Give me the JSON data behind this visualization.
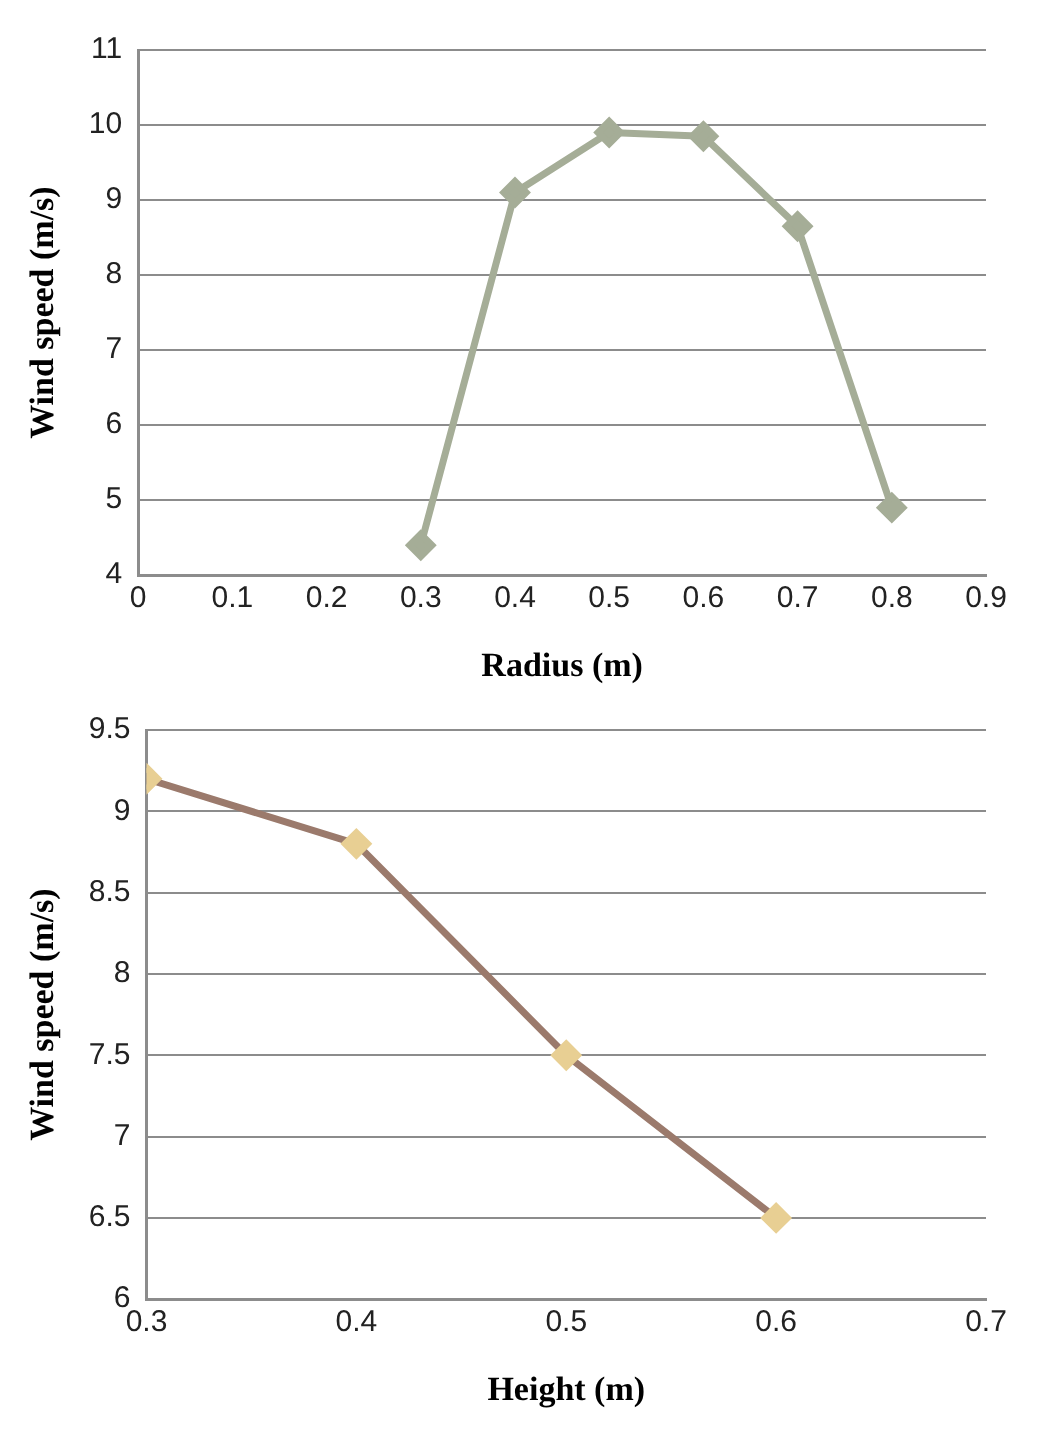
{
  "chart_data": [
    {
      "type": "line",
      "xlabel": "Radius (m)",
      "ylabel": "Wind speed (m/s)",
      "x": [
        0.3,
        0.4,
        0.5,
        0.6,
        0.7,
        0.8
      ],
      "series": [
        {
          "color": "#a5ad97",
          "values": [
            4.4,
            9.1,
            9.9,
            9.85,
            8.65,
            4.9
          ]
        }
      ],
      "xlim": [
        0,
        0.9
      ],
      "xticks": [
        0,
        0.1,
        0.2,
        0.3,
        0.4,
        0.5,
        0.6,
        0.7,
        0.8,
        0.9
      ],
      "ylim": [
        4,
        11
      ],
      "yticks": [
        4,
        5,
        6,
        7,
        8,
        9,
        10,
        11
      ],
      "grid": "y",
      "legend": false,
      "marker": "diamond",
      "line_style": "solid"
    },
    {
      "type": "line",
      "xlabel": "Height (m)",
      "ylabel": "Wind speed (m/s)",
      "x": [
        0.3,
        0.4,
        0.5,
        0.6
      ],
      "series": [
        {
          "color": "#9b7a6c",
          "colors": [
            "#e8cf93",
            "#e8cf93",
            "#e8cf93",
            "#e8cf93"
          ],
          "values": [
            9.2,
            8.8,
            7.5,
            6.5
          ]
        }
      ],
      "xlim": [
        0.3,
        0.7
      ],
      "xticks": [
        0.3,
        0.4,
        0.5,
        0.6,
        0.7
      ],
      "ylim": [
        6,
        9.5
      ],
      "yticks": [
        6,
        6.5,
        7,
        7.5,
        8,
        8.5,
        9,
        9.5
      ],
      "grid": "y",
      "legend": false,
      "marker": "diamond",
      "line_style": "solid"
    }
  ]
}
